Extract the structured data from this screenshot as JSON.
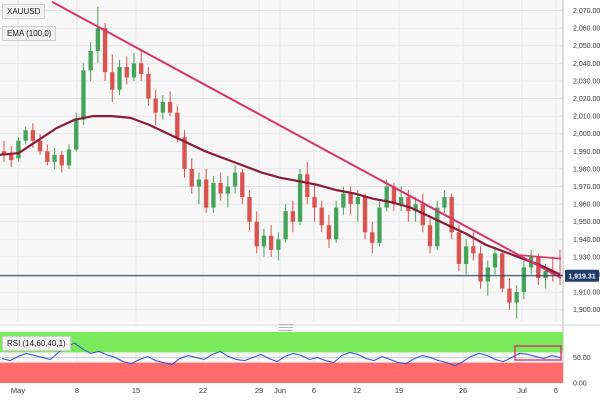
{
  "chart_data": [
    {
      "type": "candlestick",
      "symbol": "XAUUSD",
      "indicator": "EMA (100,0)",
      "current_price": "1,919.31",
      "ylim": [
        1893,
        2076
      ],
      "y_ticks": [
        "2,070.00",
        "2,060.00",
        "2,050.00",
        "2,040.00",
        "2,030.00",
        "2,020.00",
        "2,010.00",
        "2,000.00",
        "1,990.00",
        "1,980.00",
        "1,970.00",
        "1,960.00",
        "1,950.00",
        "1,940.00",
        "1,930.00",
        "1,920.00",
        "1,910.00",
        "1,900.00"
      ],
      "x_ticks": [
        "May",
        "8",
        "15",
        "22",
        "29",
        "Jun",
        "6",
        "12",
        "19",
        "26",
        "Jul",
        "6"
      ],
      "grid": true,
      "series": [
        {
          "name": "EMA (100,0)",
          "values": [
            1988,
            1989,
            1996,
            2003,
            2008,
            2010,
            2010,
            2009,
            2005,
            2000,
            1995,
            1990,
            1986,
            1982,
            1978,
            1975,
            1973,
            1971,
            1968,
            1966,
            1963,
            1961,
            1958,
            1953,
            1948,
            1943,
            1937,
            1933,
            1929,
            1925,
            1920
          ]
        },
        {
          "name": "Trendline",
          "values": [
            2075,
            1918
          ]
        }
      ],
      "candles": [
        [
          1990,
          1996,
          1984,
          1988
        ],
        [
          1988,
          1993,
          1981,
          1985
        ],
        [
          1986,
          1998,
          1984,
          1996
        ],
        [
          1996,
          2004,
          1994,
          2002
        ],
        [
          2002,
          2006,
          1992,
          1996
        ],
        [
          1996,
          2000,
          1988,
          1990
        ],
        [
          1990,
          1994,
          1982,
          1984
        ],
        [
          1984,
          1992,
          1980,
          1988
        ],
        [
          1988,
          1990,
          1978,
          1982
        ],
        [
          1982,
          1994,
          1980,
          1991
        ],
        [
          1991,
          2012,
          1990,
          2008
        ],
        [
          2008,
          2040,
          2005,
          2036
        ],
        [
          2036,
          2052,
          2030,
          2047
        ],
        [
          2047,
          2072,
          2040,
          2060
        ],
        [
          2060,
          2063,
          2030,
          2035
        ],
        [
          2035,
          2045,
          2018,
          2025
        ],
        [
          2025,
          2042,
          2022,
          2038
        ],
        [
          2038,
          2044,
          2028,
          2032
        ],
        [
          2032,
          2046,
          2030,
          2040
        ],
        [
          2040,
          2048,
          2030,
          2034
        ],
        [
          2034,
          2038,
          2016,
          2020
        ],
        [
          2020,
          2025,
          2005,
          2012
        ],
        [
          2012,
          2022,
          2008,
          2018
        ],
        [
          2018,
          2024,
          2010,
          2012
        ],
        [
          2012,
          2016,
          1995,
          1998
        ],
        [
          1998,
          2002,
          1975,
          1980
        ],
        [
          1980,
          1986,
          1966,
          1970
        ],
        [
          1970,
          1978,
          1960,
          1974
        ],
        [
          1974,
          1980,
          1955,
          1958
        ],
        [
          1958,
          1976,
          1955,
          1972
        ],
        [
          1972,
          1978,
          1962,
          1966
        ],
        [
          1966,
          1976,
          1958,
          1970
        ],
        [
          1970,
          1982,
          1966,
          1978
        ],
        [
          1978,
          1980,
          1960,
          1964
        ],
        [
          1964,
          1968,
          1945,
          1950
        ],
        [
          1950,
          1956,
          1932,
          1936
        ],
        [
          1936,
          1946,
          1930,
          1942
        ],
        [
          1942,
          1948,
          1930,
          1934
        ],
        [
          1934,
          1944,
          1928,
          1940
        ],
        [
          1940,
          1960,
          1938,
          1956
        ],
        [
          1956,
          1962,
          1944,
          1950
        ],
        [
          1950,
          1980,
          1948,
          1977
        ],
        [
          1977,
          1984,
          1960,
          1964
        ],
        [
          1964,
          1972,
          1950,
          1958
        ],
        [
          1958,
          1962,
          1944,
          1948
        ],
        [
          1948,
          1954,
          1935,
          1940
        ],
        [
          1940,
          1962,
          1938,
          1958
        ],
        [
          1958,
          1970,
          1954,
          1966
        ],
        [
          1966,
          1970,
          1954,
          1960
        ],
        [
          1960,
          1968,
          1950,
          1964
        ],
        [
          1964,
          1966,
          1940,
          1944
        ],
        [
          1944,
          1950,
          1932,
          1938
        ],
        [
          1938,
          1962,
          1936,
          1958
        ],
        [
          1958,
          1974,
          1956,
          1970
        ],
        [
          1970,
          1972,
          1956,
          1960
        ],
        [
          1960,
          1970,
          1956,
          1964
        ],
        [
          1964,
          1968,
          1950,
          1956
        ],
        [
          1956,
          1964,
          1950,
          1960
        ],
        [
          1960,
          1966,
          1944,
          1948
        ],
        [
          1948,
          1952,
          1932,
          1936
        ],
        [
          1936,
          1962,
          1934,
          1958
        ],
        [
          1958,
          1968,
          1955,
          1964
        ],
        [
          1964,
          1966,
          1940,
          1944
        ],
        [
          1944,
          1948,
          1922,
          1926
        ],
        [
          1926,
          1940,
          1920,
          1936
        ],
        [
          1936,
          1944,
          1928,
          1932
        ],
        [
          1932,
          1936,
          1912,
          1916
        ],
        [
          1916,
          1928,
          1908,
          1924
        ],
        [
          1924,
          1936,
          1920,
          1932
        ],
        [
          1932,
          1934,
          1910,
          1912
        ],
        [
          1912,
          1918,
          1900,
          1904
        ],
        [
          1904,
          1914,
          1895,
          1910
        ],
        [
          1910,
          1928,
          1906,
          1924
        ],
        [
          1924,
          1934,
          1920,
          1930
        ],
        [
          1930,
          1932,
          1914,
          1918
        ],
        [
          1918,
          1926,
          1912,
          1922
        ],
        [
          1922,
          1930,
          1916,
          1920
        ],
        [
          1920,
          1934,
          1914,
          1919
        ]
      ]
    },
    {
      "type": "line",
      "indicator": "RSI (14,60,40,1)",
      "ylim": [
        0,
        100
      ],
      "y_ticks": [
        "50.00",
        "0.00"
      ],
      "levels": [
        60,
        40
      ],
      "series": [
        {
          "name": "RSI",
          "values": [
            48,
            44,
            52,
            58,
            54,
            50,
            46,
            60,
            72,
            78,
            66,
            58,
            62,
            55,
            50,
            42,
            38,
            46,
            52,
            44,
            40,
            36,
            48,
            54,
            50,
            46,
            56,
            62,
            52,
            46,
            44,
            50,
            56,
            48,
            42,
            52,
            58,
            54,
            46,
            50,
            44,
            40,
            54,
            60,
            56,
            48,
            44,
            52,
            46,
            40,
            38,
            48,
            54,
            50,
            44,
            40,
            34,
            42,
            52,
            58,
            54,
            46,
            42,
            50,
            58,
            56,
            52,
            48,
            54,
            50
          ]
        }
      ]
    }
  ],
  "colors": {
    "candle_up": "#46a35a",
    "candle_down": "#d9534f",
    "ema_line": "#8a1c3a",
    "trendline": "#d6336c",
    "price_line": "#1f3d6b",
    "rsi_line": "#2b4fd6",
    "rsi_overbought": "#7bea5a",
    "rsi_oversold": "#ff6b6b",
    "highlight_box": "#d6336c"
  }
}
